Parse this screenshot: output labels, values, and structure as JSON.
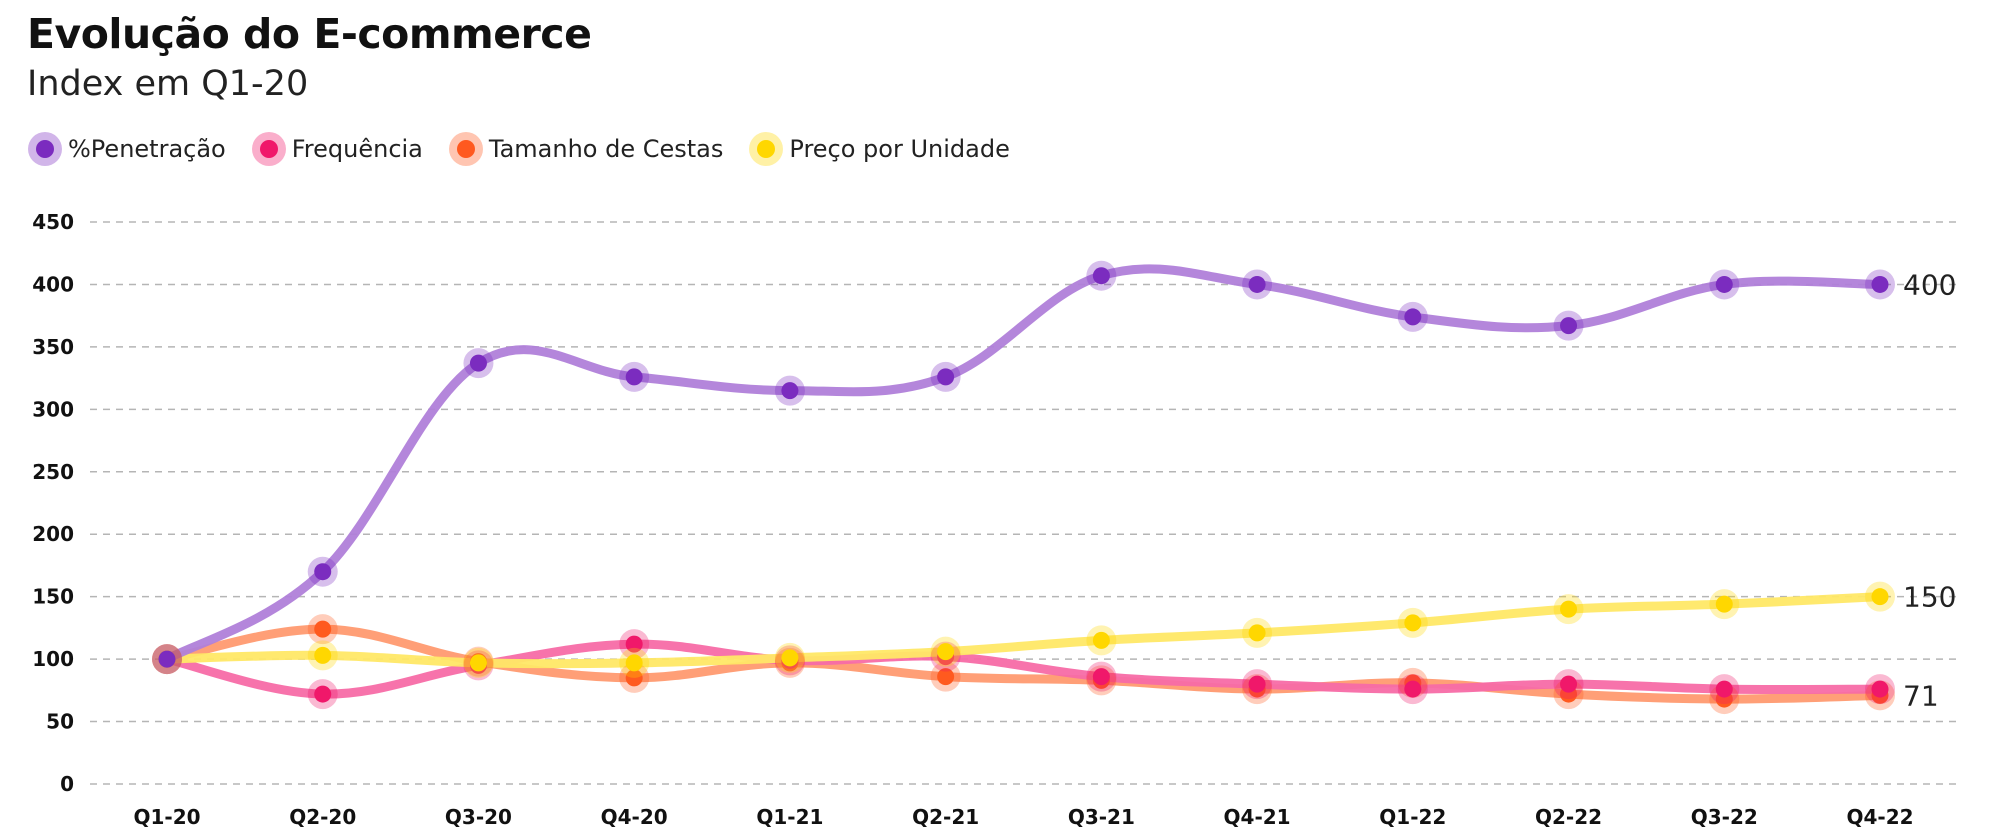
{
  "chart_data": {
    "type": "line",
    "title": "Evolução do E-commerce",
    "subtitle": "Index em Q1-20",
    "xlabel": "",
    "ylabel": "",
    "categories": [
      "Q1-20",
      "Q2-20",
      "Q3-20",
      "Q4-20",
      "Q1-21",
      "Q2-21",
      "Q3-21",
      "Q4-21",
      "Q1-22",
      "Q2-22",
      "Q3-22",
      "Q4-22"
    ],
    "ylim": [
      0,
      450
    ],
    "yticks": [
      0,
      50,
      100,
      150,
      200,
      250,
      300,
      350,
      400,
      450
    ],
    "grid": "horizontal-dashed",
    "legend": "top-left",
    "series": [
      {
        "name": "%Penetração",
        "color": "#7B2CBF",
        "line_color": "#B07FD9",
        "values": [
          100,
          170,
          337,
          326,
          315,
          326,
          407,
          400,
          374,
          367,
          400,
          400
        ]
      },
      {
        "name": "Frequência",
        "color": "#F0186A",
        "line_color": "#F76BA6",
        "values": [
          100,
          72,
          95,
          112,
          99,
          102,
          86,
          80,
          76,
          80,
          76,
          76
        ]
      },
      {
        "name": "Tamanho de Cestas",
        "color": "#FF5A1F",
        "line_color": "#FF9A70",
        "values": [
          100,
          124,
          98,
          85,
          97,
          86,
          83,
          76,
          81,
          72,
          68,
          71
        ]
      },
      {
        "name": "Preço por Unidade",
        "color": "#FFD700",
        "line_color": "#FFE866",
        "values": [
          100,
          103,
          97,
          97,
          101,
          106,
          115,
          121,
          129,
          140,
          144,
          150
        ]
      }
    ],
    "end_labels": [
      {
        "text": "400",
        "value": 400
      },
      {
        "text": "150",
        "value": 150
      },
      {
        "text": "71",
        "value": 71
      }
    ]
  }
}
